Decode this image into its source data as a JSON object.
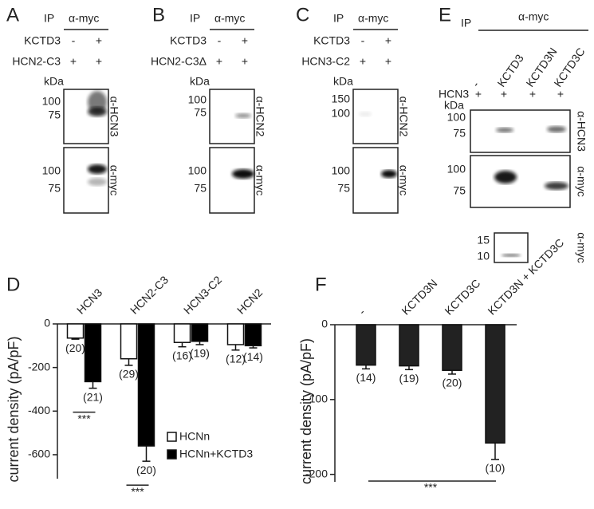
{
  "panels": {
    "A": {
      "letter": "A",
      "ip": "IP",
      "antibody": "α-myc",
      "rows": [
        {
          "label": "KCTD3",
          "lanes": [
            "-",
            "+"
          ]
        },
        {
          "label": "HCN2-C3",
          "lanes": [
            "+",
            "+"
          ]
        }
      ],
      "kda": "kDa",
      "blots": [
        {
          "markers": [
            "100",
            "75"
          ],
          "label": "α-HCN3"
        },
        {
          "markers": [
            "100",
            "75"
          ],
          "label": "α-myc"
        }
      ]
    },
    "B": {
      "letter": "B",
      "ip": "IP",
      "antibody": "α-myc",
      "rows": [
        {
          "label": "KCTD3",
          "lanes": [
            "-",
            "+"
          ]
        },
        {
          "label": "HCN2-C3Δ",
          "lanes": [
            "+",
            "+"
          ]
        }
      ],
      "kda": "kDa",
      "blots": [
        {
          "markers": [
            "100",
            "75"
          ],
          "label": "α-HCN2"
        },
        {
          "markers": [
            "100",
            "75"
          ],
          "label": "α-myc"
        }
      ]
    },
    "C": {
      "letter": "C",
      "ip": "IP",
      "antibody": "α-myc",
      "rows": [
        {
          "label": "KCTD3",
          "lanes": [
            "-",
            "+"
          ]
        },
        {
          "label": "HCN3-C2",
          "lanes": [
            "+",
            "+"
          ]
        }
      ],
      "kda": "kDa",
      "blots": [
        {
          "markers": [
            "150",
            "100"
          ],
          "label": "α-HCN2"
        },
        {
          "markers": [
            "100",
            "75"
          ],
          "label": "α-myc"
        }
      ]
    },
    "E": {
      "letter": "E",
      "ip": "IP",
      "antibody": "α-myc",
      "columns": [
        "-",
        "KCTD3",
        "KCTD3N",
        "KCTD3C"
      ],
      "rows": [
        {
          "label": "HCN3",
          "lanes": [
            "+",
            "+",
            "+",
            "+"
          ]
        }
      ],
      "kda": "kDa",
      "blots": [
        {
          "markers": [
            "100",
            "75"
          ],
          "label": "α-HCN3"
        },
        {
          "markers": [
            "100",
            "75"
          ],
          "label": "α-myc"
        },
        {
          "markers": [
            "15",
            "10"
          ],
          "label": "α-myc"
        }
      ]
    }
  },
  "chart_data": [
    {
      "type": "bar",
      "letter": "D",
      "y_label": "current density (pA/pF)",
      "categories": [
        "HCN3",
        "HCN2-C3",
        "HCN3-C2",
        "HCN2"
      ],
      "series": [
        {
          "name": "HCNn",
          "color": "#ffffff",
          "values": [
            -65,
            -160,
            -85,
            -95
          ],
          "errors": [
            5,
            30,
            20,
            25
          ],
          "n_labels": [
            "(20)",
            "(29)",
            "(16)",
            "(12)"
          ]
        },
        {
          "name": "HCNn+KCTD3",
          "color": "#000000",
          "values": [
            -265,
            -560,
            -80,
            -100
          ],
          "errors": [
            30,
            70,
            15,
            10
          ],
          "n_labels": [
            "(21)",
            "(20)",
            "(19)",
            "(14)"
          ]
        }
      ],
      "significance": [
        "***",
        "***",
        null,
        null
      ],
      "ylim": [
        -710,
        0
      ],
      "yticks": [
        0,
        -200,
        -400,
        -600
      ],
      "legend": "lower right"
    },
    {
      "type": "bar",
      "letter": "F",
      "y_label": "current density (pA/pF)",
      "categories": [
        "-",
        "KCTD3N",
        "KCTD3C",
        "KCTD3N + KCTD3C"
      ],
      "values": [
        -54,
        -55,
        -61,
        -158
      ],
      "errors": [
        5,
        5,
        5,
        22
      ],
      "color": "#222222",
      "n_labels": [
        "(14)",
        "(19)",
        "(20)",
        "(10)"
      ],
      "significance": "***",
      "ylim": [
        -210,
        0
      ],
      "yticks": [
        0,
        -100,
        -200
      ]
    }
  ]
}
